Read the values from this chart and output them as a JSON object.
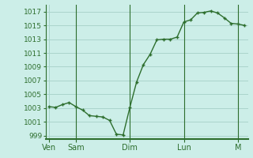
{
  "bg_color": "#cceee8",
  "plot_bg_color": "#cceee8",
  "line_color": "#2d6e2d",
  "grid_color": "#aad4cc",
  "tick_label_color": "#2d6e2d",
  "spine_color": "#2d6e2d",
  "ylim": [
    998.5,
    1018.0
  ],
  "yticks": [
    999,
    1001,
    1003,
    1005,
    1007,
    1009,
    1011,
    1013,
    1015,
    1017
  ],
  "day_labels": [
    "Ven",
    "Sam",
    "Dim",
    "Lun",
    "M"
  ],
  "day_positions": [
    0,
    8,
    24,
    40,
    56
  ],
  "xlim": [
    -1,
    59
  ],
  "x": [
    0,
    2,
    4,
    6,
    8,
    10,
    12,
    14,
    16,
    18,
    20,
    22,
    24,
    26,
    28,
    30,
    32,
    34,
    36,
    38,
    40,
    42,
    44,
    46,
    48,
    50,
    52,
    54,
    56,
    58
  ],
  "y": [
    1003.2,
    1003.1,
    1003.5,
    1003.8,
    1003.2,
    1002.7,
    1001.9,
    1001.8,
    1001.7,
    1001.2,
    999.2,
    999.1,
    1003.1,
    1006.8,
    1009.3,
    1010.8,
    1012.9,
    1013.0,
    1013.0,
    1013.3,
    1015.5,
    1015.8,
    1016.8,
    1016.9,
    1017.1,
    1016.8,
    1016.1,
    1015.3,
    1015.2,
    1015.0
  ]
}
